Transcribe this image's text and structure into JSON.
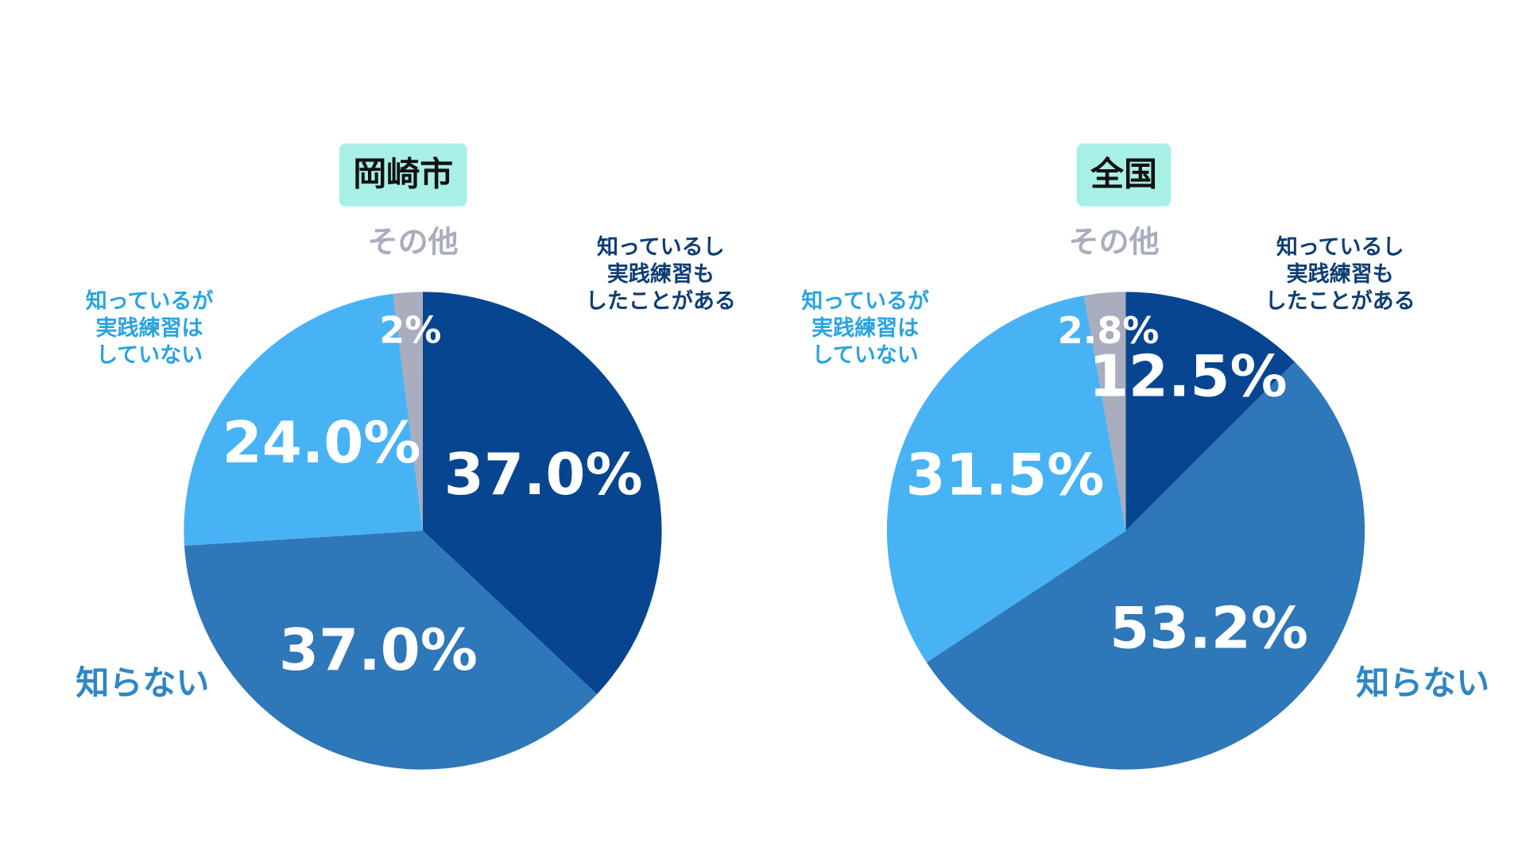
{
  "chart_data": [
    {
      "type": "pie",
      "title": "岡崎市",
      "categories": [
        [
          "知っているし",
          "実践練習も",
          "したことがある"
        ],
        [
          "知らない"
        ],
        [
          "知っているが",
          "実践練習は",
          "していない"
        ],
        [
          "その他"
        ]
      ],
      "values": [
        37.0,
        37.0,
        24.0,
        2
      ],
      "value_labels": [
        "37.0%",
        "37.0%",
        "24.0%",
        "2%"
      ],
      "colors": [
        "#074590",
        "#2e77b8",
        "#47b3f5",
        "#a9adbd"
      ]
    },
    {
      "type": "pie",
      "title": "全国",
      "categories": [
        [
          "知っているし",
          "実践練習も",
          "したことがある"
        ],
        [
          "知らない"
        ],
        [
          "知っているが",
          "実践練習は",
          "していない"
        ],
        [
          "その他"
        ]
      ],
      "values": [
        12.5,
        53.2,
        31.5,
        2.8
      ],
      "value_labels": [
        "12.5%",
        "53.2%",
        "31.5%",
        "2.8%"
      ],
      "colors": [
        "#074590",
        "#2e77b8",
        "#47b3f5",
        "#a9adbd"
      ]
    }
  ]
}
